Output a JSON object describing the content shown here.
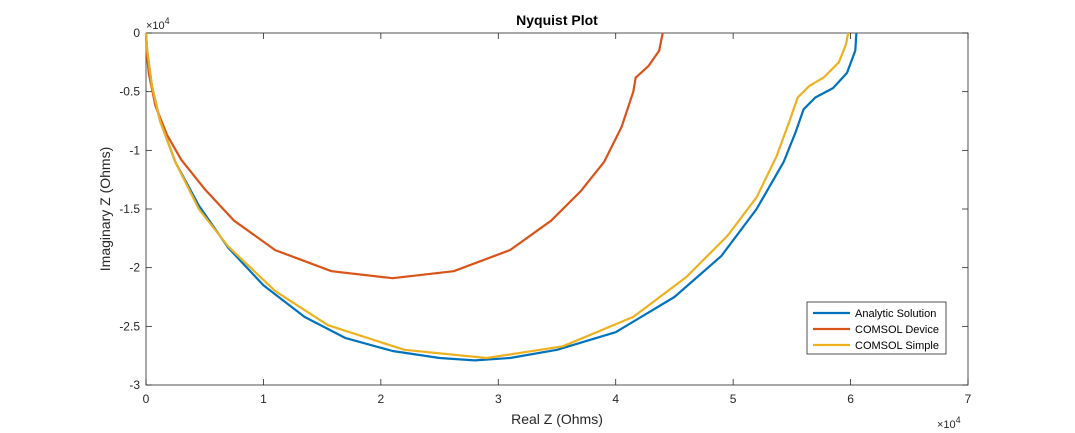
{
  "chart_data": {
    "type": "line",
    "title": "Nyquist Plot",
    "xlabel": "Real Z (Ohms)",
    "ylabel": "Imaginary Z (Ohms)",
    "xlim": [
      0,
      70000
    ],
    "ylim": [
      -30000,
      0
    ],
    "x_ticks": [
      0,
      10000,
      20000,
      30000,
      40000,
      50000,
      60000,
      70000
    ],
    "y_ticks": [
      -30000,
      -25000,
      -20000,
      -15000,
      -10000,
      -5000,
      0
    ],
    "x_tick_labels": [
      "0",
      "1",
      "2",
      "3",
      "4",
      "5",
      "6",
      "7"
    ],
    "y_tick_labels": [
      "-3",
      "-2.5",
      "-2",
      "-1.5",
      "-1",
      "-0.5",
      "0"
    ],
    "x_exponent": {
      "base": "×10",
      "power": "4"
    },
    "y_exponent": {
      "base": "×10",
      "power": "4"
    },
    "grid": false,
    "legend_position": "bottom-right",
    "series": [
      {
        "name": "Analytic Solution",
        "color": "#0072BD",
        "points": [
          [
            60500,
            0
          ],
          [
            60400,
            -1500
          ],
          [
            59700,
            -3400
          ],
          [
            58500,
            -4700
          ],
          [
            57000,
            -5500
          ],
          [
            56000,
            -6500
          ],
          [
            55300,
            -8500
          ],
          [
            54300,
            -11000
          ],
          [
            52000,
            -15000
          ],
          [
            49000,
            -19000
          ],
          [
            45000,
            -22500
          ],
          [
            40000,
            -25500
          ],
          [
            35000,
            -27000
          ],
          [
            31000,
            -27700
          ],
          [
            28000,
            -27900
          ],
          [
            25000,
            -27700
          ],
          [
            21000,
            -27100
          ],
          [
            17000,
            -26000
          ],
          [
            13500,
            -24200
          ],
          [
            10000,
            -21500
          ],
          [
            7000,
            -18300
          ],
          [
            4500,
            -14700
          ],
          [
            2500,
            -11000
          ],
          [
            1200,
            -7500
          ],
          [
            500,
            -4500
          ],
          [
            100,
            -1500
          ],
          [
            0,
            0
          ]
        ]
      },
      {
        "name": "COMSOL Device",
        "color": "#D95319",
        "points": [
          [
            44000,
            0
          ],
          [
            43700,
            -1500
          ],
          [
            42800,
            -2800
          ],
          [
            41700,
            -3800
          ],
          [
            41500,
            -5000
          ],
          [
            40500,
            -8000
          ],
          [
            39000,
            -11000
          ],
          [
            37000,
            -13500
          ],
          [
            34500,
            -16000
          ],
          [
            31000,
            -18500
          ],
          [
            26200,
            -20300
          ],
          [
            21000,
            -20900
          ],
          [
            15800,
            -20300
          ],
          [
            11000,
            -18500
          ],
          [
            7500,
            -16000
          ],
          [
            5000,
            -13300
          ],
          [
            3000,
            -10800
          ],
          [
            1800,
            -8700
          ],
          [
            800,
            -6200
          ],
          [
            250,
            -3500
          ],
          [
            50,
            -1500
          ],
          [
            0,
            0
          ]
        ]
      },
      {
        "name": "COMSOL Simple",
        "color": "#EDB120",
        "points": [
          [
            59800,
            0
          ],
          [
            59600,
            -1000
          ],
          [
            59000,
            -2500
          ],
          [
            57700,
            -3800
          ],
          [
            56500,
            -4500
          ],
          [
            55500,
            -5500
          ],
          [
            54800,
            -7500
          ],
          [
            53700,
            -10500
          ],
          [
            52000,
            -14000
          ],
          [
            49500,
            -17300
          ],
          [
            46000,
            -20800
          ],
          [
            41500,
            -24200
          ],
          [
            35500,
            -26700
          ],
          [
            29000,
            -27700
          ],
          [
            22000,
            -27000
          ],
          [
            15500,
            -24900
          ],
          [
            11000,
            -22000
          ],
          [
            7000,
            -18200
          ],
          [
            4500,
            -15000
          ],
          [
            2500,
            -11000
          ],
          [
            1200,
            -7500
          ],
          [
            500,
            -4500
          ],
          [
            100,
            -1500
          ],
          [
            0,
            0
          ]
        ]
      }
    ]
  }
}
